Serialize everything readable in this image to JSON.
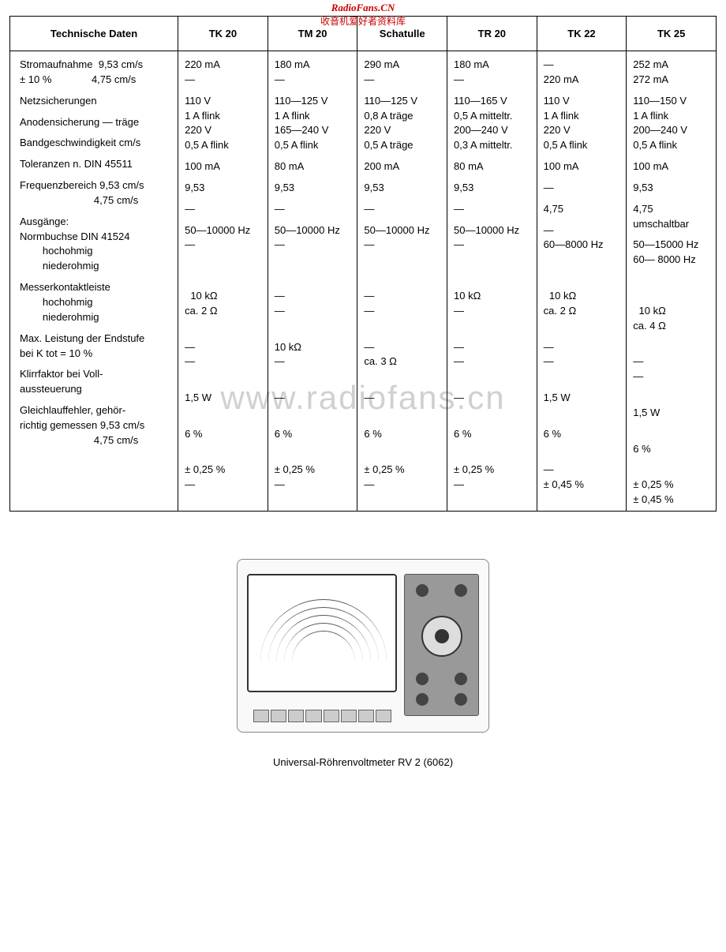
{
  "watermark": {
    "brand": "RadioFans.CN",
    "subtitle": "收音机爱好者资料库",
    "mid": "www.radiofans.cn"
  },
  "table": {
    "header_label": "Technische Daten",
    "columns": [
      "TK 20",
      "TM 20",
      "Schatulle",
      "TR 20",
      "TK 22",
      "TK 25"
    ],
    "rows": [
      {
        "label": [
          "Stromaufnahme  9,53 cm/s",
          "± 10 %              4,75 cm/s"
        ],
        "cells": [
          [
            "220 mA",
            "—"
          ],
          [
            "180 mA",
            "—"
          ],
          [
            "290 mA",
            "—"
          ],
          [
            "180 mA",
            "—"
          ],
          [
            "—",
            "220 mA"
          ],
          [
            "252 mA",
            "272 mA"
          ]
        ]
      },
      {
        "label": [
          "Netzsicherungen"
        ],
        "cells": [
          [
            "110 V",
            "1 A flink",
            "220 V",
            "0,5 A flink"
          ],
          [
            "110—125 V",
            "1 A flink",
            "165—240 V",
            "0,5 A flink"
          ],
          [
            "110—125 V",
            "0,8 A träge",
            "220 V",
            "0,5 A träge"
          ],
          [
            "110—165 V",
            "0,5 A mitteltr.",
            "200—240 V",
            "0,3 A mitteltr."
          ],
          [
            "110 V",
            "1 A flink",
            "220 V",
            "0,5 A flink"
          ],
          [
            "110—150 V",
            "1 A flink",
            "200—240 V",
            "0,5 A flink"
          ]
        ]
      },
      {
        "label": [
          "Anodensicherung — träge"
        ],
        "cells": [
          [
            "100 mA"
          ],
          [
            "80 mA"
          ],
          [
            "200 mA"
          ],
          [
            "80 mA"
          ],
          [
            "100 mA"
          ],
          [
            "100 mA"
          ]
        ]
      },
      {
        "label": [
          "Bandgeschwindigkeit cm/s"
        ],
        "cells": [
          [
            "9,53"
          ],
          [
            "9,53"
          ],
          [
            "9,53"
          ],
          [
            "9,53"
          ],
          [
            "—"
          ],
          [
            "9,53"
          ]
        ]
      },
      {
        "label": [
          "Toleranzen n. DIN 45511"
        ],
        "cells": [
          [
            "—"
          ],
          [
            "—"
          ],
          [
            "—"
          ],
          [
            "—"
          ],
          [
            "4,75"
          ],
          [
            "4,75",
            "umschaltbar"
          ]
        ]
      },
      {
        "label": [
          "Frequenzbereich 9,53 cm/s",
          "                          4,75 cm/s"
        ],
        "cells": [
          [
            "50—10000 Hz",
            "—"
          ],
          [
            "50—10000 Hz",
            "—"
          ],
          [
            "50—10000 Hz",
            "—"
          ],
          [
            "50—10000 Hz",
            "—"
          ],
          [
            "—",
            "60—8000 Hz"
          ],
          [
            "50—15000 Hz",
            "60— 8000 Hz"
          ]
        ]
      },
      {
        "label": [
          "Ausgänge:",
          "Normbuchse DIN 41524",
          "        hochohmig",
          "        niederohmig"
        ],
        "cells": [
          [
            "",
            "",
            "  10 kΩ",
            "ca. 2 Ω"
          ],
          [
            "",
            "",
            "—",
            "—"
          ],
          [
            "",
            "",
            "—",
            "—"
          ],
          [
            "",
            "",
            "10 kΩ",
            "—"
          ],
          [
            "",
            "",
            "  10 kΩ",
            "ca. 2 Ω"
          ],
          [
            "",
            "",
            "  10 kΩ",
            "ca. 4 Ω"
          ]
        ]
      },
      {
        "label": [
          "Messerkontaktleiste",
          "        hochohmig",
          "        niederohmig"
        ],
        "cells": [
          [
            "",
            "—",
            "—"
          ],
          [
            "",
            "10 kΩ",
            "—"
          ],
          [
            "",
            "—",
            "ca. 3 Ω"
          ],
          [
            "",
            "—",
            "—"
          ],
          [
            "",
            "—",
            "—"
          ],
          [
            "",
            "—",
            "—"
          ]
        ]
      },
      {
        "label": [
          "Max. Leistung der Endstufe",
          "bei K tot = 10 %"
        ],
        "cells": [
          [
            "",
            "1,5 W"
          ],
          [
            "",
            "—"
          ],
          [
            "",
            "—"
          ],
          [
            "",
            "—"
          ],
          [
            "",
            "1,5 W"
          ],
          [
            "",
            "1,5 W"
          ]
        ]
      },
      {
        "label": [
          "Klirrfaktor bei Voll-",
          "aussteuerung"
        ],
        "cells": [
          [
            "",
            "6 %"
          ],
          [
            "",
            "6 %"
          ],
          [
            "",
            "6 %"
          ],
          [
            "",
            "6 %"
          ],
          [
            "",
            "6 %"
          ],
          [
            "",
            "6 %"
          ]
        ]
      },
      {
        "label": [
          "Gleichlauffehler, gehör-",
          "richtig gemessen 9,53 cm/s",
          "                          4,75 cm/s"
        ],
        "cells": [
          [
            "",
            "± 0,25 %",
            "—"
          ],
          [
            "",
            "± 0,25 %",
            "—"
          ],
          [
            "",
            "± 0,25 %",
            "—"
          ],
          [
            "",
            "± 0,25 %",
            "—"
          ],
          [
            "",
            "—",
            "± 0,45 %"
          ],
          [
            "",
            "± 0,25 %",
            "± 0,45 %"
          ]
        ]
      }
    ]
  },
  "caption": "Universal-Röhrenvoltmeter RV 2 (6062)"
}
